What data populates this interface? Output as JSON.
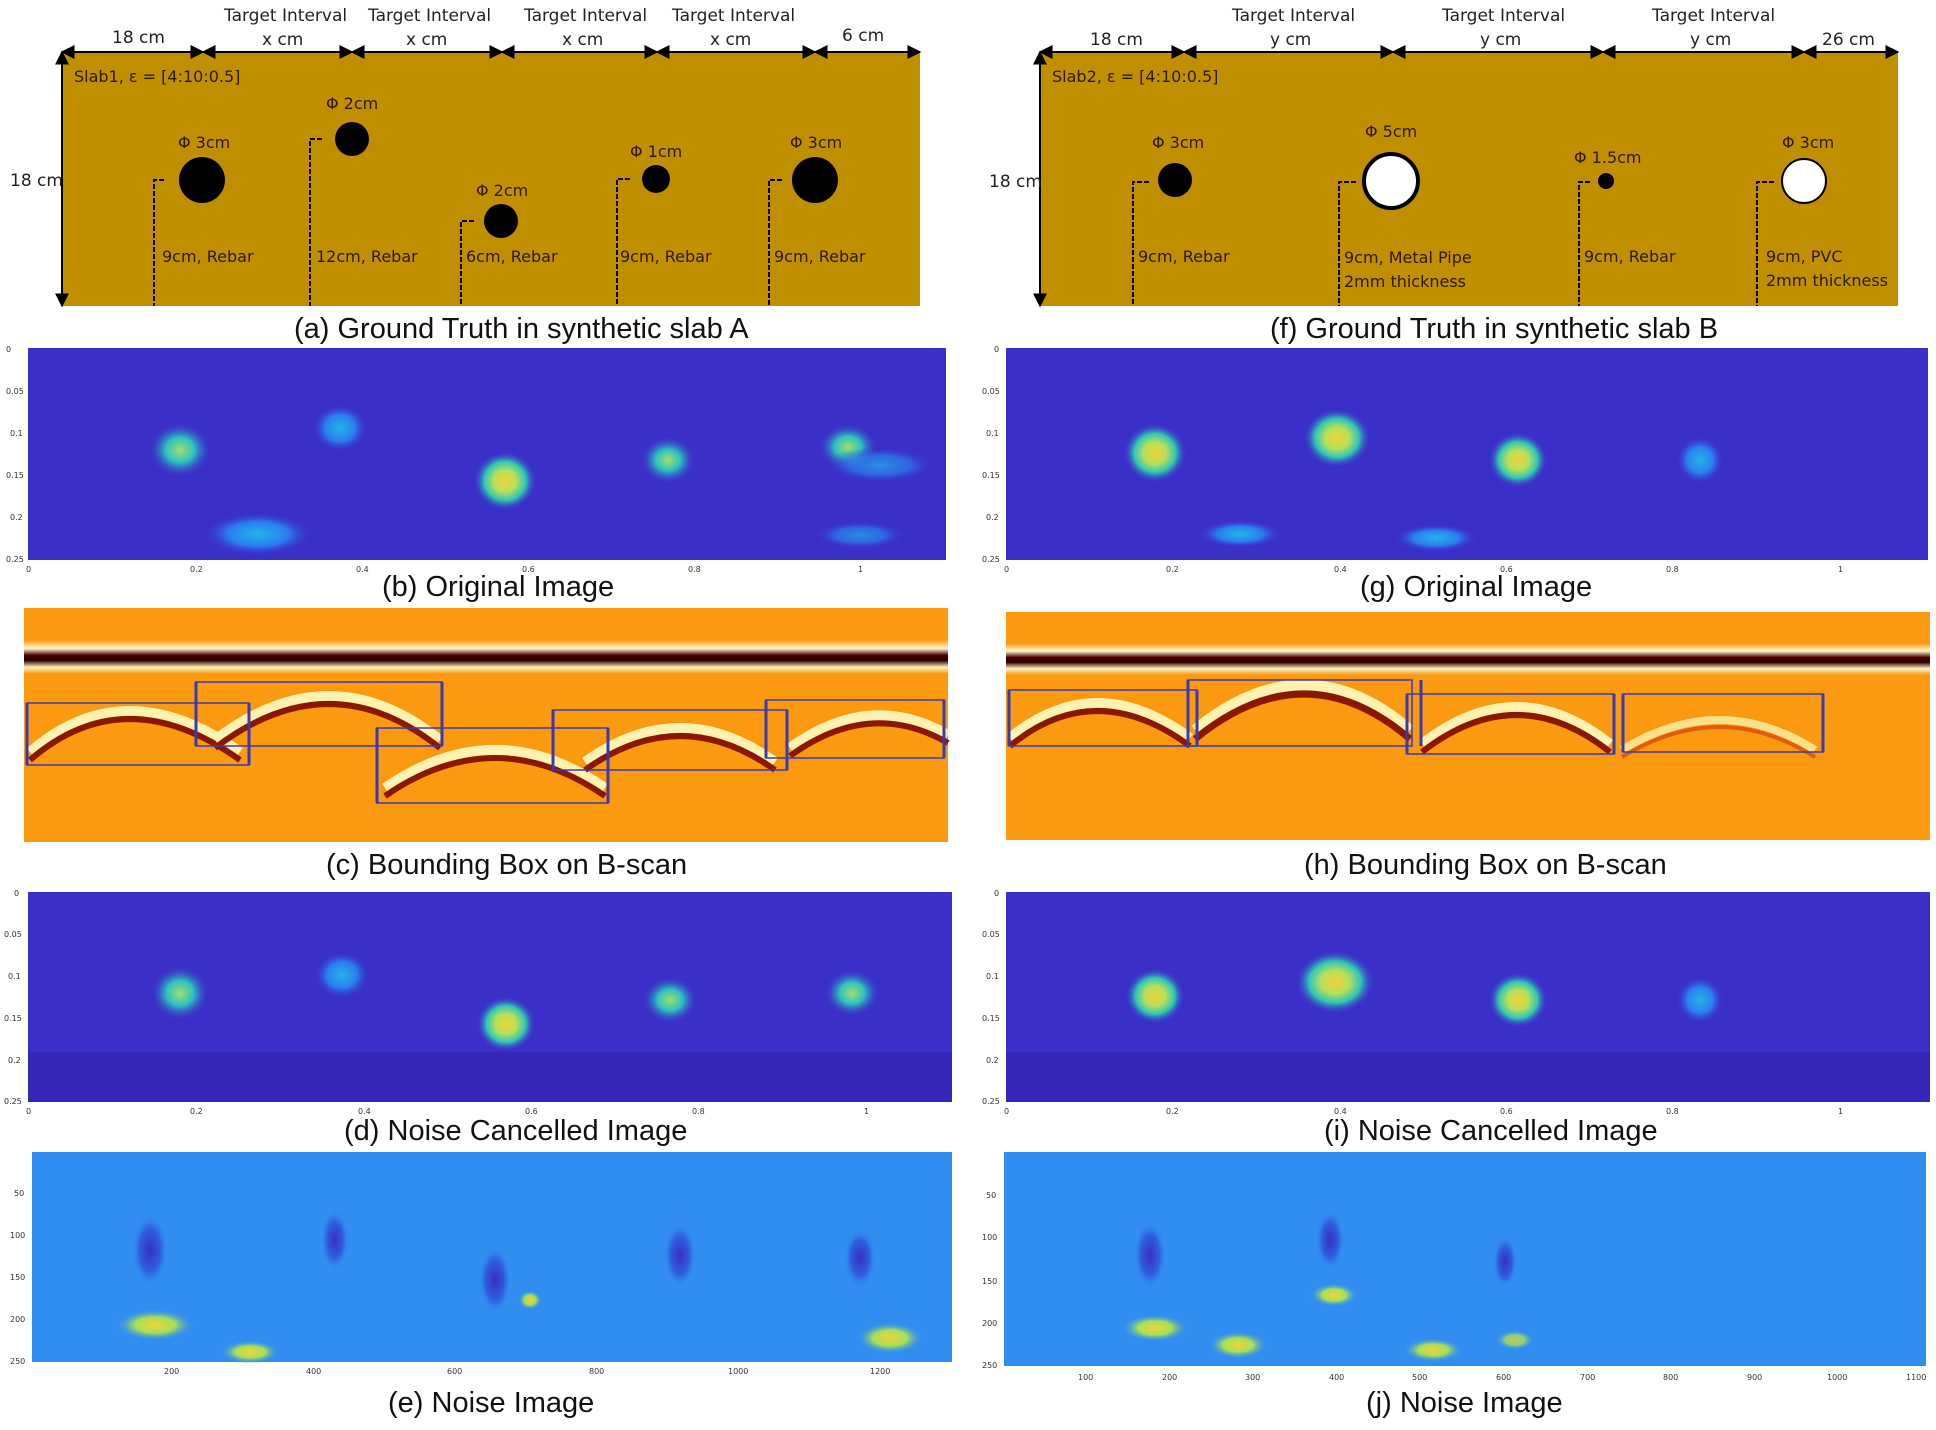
{
  "slab_a": {
    "label": "Slab1, ε = [4:10:0.5]",
    "height": "18 cm",
    "dims": [
      "18 cm",
      "x cm",
      "x cm",
      "x cm",
      "x cm",
      "6 cm"
    ],
    "interval_label": "Target Interval",
    "targets": [
      {
        "diameter": "Φ 3cm",
        "note": "9cm, Rebar",
        "fill": "black"
      },
      {
        "diameter": "Φ 2cm",
        "note": "12cm, Rebar",
        "fill": "black"
      },
      {
        "diameter": "Φ 2cm",
        "note": "6cm, Rebar",
        "fill": "black"
      },
      {
        "diameter": "Φ 1cm",
        "note": "9cm, Rebar",
        "fill": "black"
      },
      {
        "diameter": "Φ 3cm",
        "note": "9cm, Rebar",
        "fill": "black"
      }
    ]
  },
  "slab_b": {
    "label": "Slab2, ε = [4:10:0.5]",
    "height": "18 cm",
    "dims": [
      "18 cm",
      "y cm",
      "y cm",
      "y cm",
      "26 cm"
    ],
    "interval_label": "Target Interval",
    "targets": [
      {
        "diameter": "Φ 3cm",
        "note": "9cm, Rebar",
        "note2": "",
        "fill": "black"
      },
      {
        "diameter": "Φ 5cm",
        "note": "9cm, Metal Pipe",
        "note2": "2mm thickness",
        "fill": "white"
      },
      {
        "diameter": "Φ 1.5cm",
        "note": "9cm, Rebar",
        "note2": "",
        "fill": "black"
      },
      {
        "diameter": "Φ 3cm",
        "note": "9cm, PVC",
        "note2": "2mm thickness",
        "fill": "white"
      }
    ]
  },
  "captions": {
    "a": "(a) Ground Truth in synthetic slab A",
    "b": "(b) Original Image",
    "c": "(c) Bounding Box on B-scan",
    "d": "(d) Noise Cancelled Image",
    "e": "(e) Noise Image",
    "f": "(f) Ground Truth in synthetic slab B",
    "g": "(g) Original Image",
    "h": "(h) Bounding Box on B-scan",
    "i": "(i) Noise Cancelled Image",
    "j": "(j) Noise Image"
  },
  "axes": {
    "y_depth": [
      "0",
      "0.05",
      "0.1",
      "0.15",
      "0.2",
      "0.25"
    ],
    "x_dist": [
      "0",
      "0.2",
      "0.4",
      "0.6",
      "0.8",
      "1"
    ],
    "noise_y": [
      "50",
      "100",
      "150",
      "200",
      "250"
    ],
    "noise_x_a": [
      "200",
      "400",
      "600",
      "800",
      "1000",
      "1200"
    ],
    "noise_x_b": [
      "100",
      "200",
      "300",
      "400",
      "500",
      "600",
      "700",
      "800",
      "900",
      "1000",
      "1100"
    ]
  },
  "colors": {
    "slab": "#bf8f00",
    "heat_bg": "#3a2fc8",
    "bscan_bg": "#fb9a10",
    "noise_bg": "#2f8ef0",
    "bbox": "#3a3ab0"
  }
}
